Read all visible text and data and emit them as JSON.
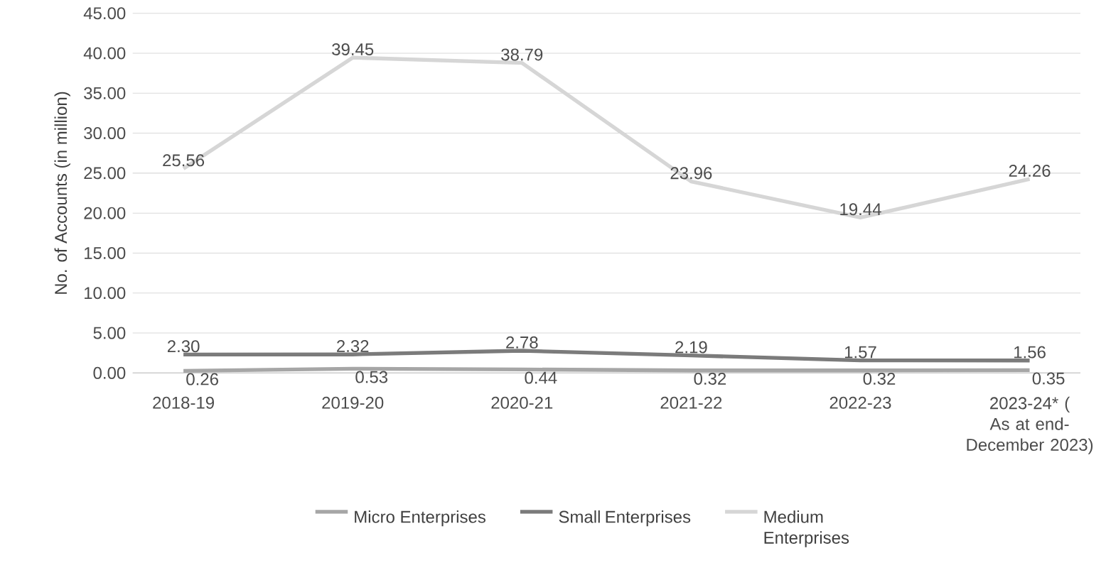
{
  "chart_data": {
    "type": "line",
    "ylabel": "No. of Accounts (in million)",
    "categories": [
      "2018-19",
      "2019-20",
      "2020-21",
      "2021-22",
      "2022-23",
      "2023-24* ( As at end- December 2023)"
    ],
    "series": [
      {
        "name": "Micro Enterprises",
        "color": "#a6a6a6",
        "values": [
          0.26,
          0.53,
          0.44,
          0.32,
          0.32,
          0.35
        ],
        "value_labels": [
          "0.26",
          "0.53",
          "0.44",
          "0.32",
          "0.32",
          "0.35"
        ]
      },
      {
        "name": "Small Enterprises",
        "color": "#7b7b7b",
        "values": [
          2.3,
          2.32,
          2.78,
          2.19,
          1.57,
          1.56
        ],
        "value_labels": [
          "2.30",
          "2.32",
          "2.78",
          "2.19",
          "1.57",
          "1.56"
        ]
      },
      {
        "name": "Medium Enterprises",
        "color": "#d6d6d6",
        "values": [
          25.56,
          39.45,
          38.79,
          23.96,
          19.44,
          24.26
        ],
        "value_labels": [
          "25.56",
          "39.45",
          "38.79",
          "23.96",
          "19.44",
          "24.26"
        ]
      }
    ],
    "ylim": [
      0,
      45
    ],
    "yticks": [
      {
        "value": 0,
        "label": "0.00"
      },
      {
        "value": 5,
        "label": "5.00"
      },
      {
        "value": 10,
        "label": "10.00"
      },
      {
        "value": 15,
        "label": "15.00"
      },
      {
        "value": 20,
        "label": "20.00"
      },
      {
        "value": 25,
        "label": "25.00"
      },
      {
        "value": 30,
        "label": "30.00"
      },
      {
        "value": 35,
        "label": "35.00"
      },
      {
        "value": 40,
        "label": "40.00"
      },
      {
        "value": 45,
        "label": "45.00"
      }
    ],
    "grid": "y",
    "legend": "bottom",
    "marker": "none",
    "line_style": "solid"
  }
}
